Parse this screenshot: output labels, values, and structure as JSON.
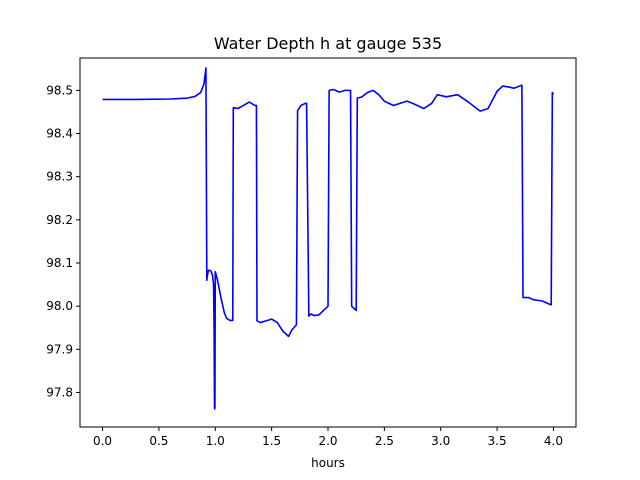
{
  "chart_data": {
    "type": "line",
    "title": "Water Depth h at gauge 535",
    "xlabel": "hours",
    "ylabel": "",
    "xlim": [
      -0.2,
      4.2
    ],
    "ylim": [
      97.72,
      98.575
    ],
    "x_ticks": [
      0.0,
      0.5,
      1.0,
      1.5,
      2.0,
      2.5,
      3.0,
      3.5,
      4.0
    ],
    "x_tick_labels": [
      "0.0",
      "0.5",
      "1.0",
      "1.5",
      "2.0",
      "2.5",
      "3.0",
      "3.5",
      "4.0"
    ],
    "y_ticks": [
      97.8,
      97.9,
      98.0,
      98.1,
      98.2,
      98.3,
      98.4,
      98.5
    ],
    "y_tick_labels": [
      "97.8",
      "97.9",
      "98.0",
      "98.1",
      "98.2",
      "98.3",
      "98.4",
      "98.5"
    ],
    "grid": false,
    "series": [
      {
        "color": "#0000ff",
        "x": [
          0.0,
          0.3,
          0.6,
          0.75,
          0.82,
          0.87,
          0.9,
          0.917,
          0.925,
          0.93,
          0.94,
          0.96,
          0.975,
          0.985,
          0.99,
          0.993,
          0.995,
          0.997,
          1.0,
          1.02,
          1.05,
          1.08,
          1.1,
          1.13,
          1.155,
          1.16,
          1.2,
          1.25,
          1.3,
          1.32,
          1.35,
          1.365,
          1.37,
          1.4,
          1.45,
          1.5,
          1.55,
          1.6,
          1.65,
          1.68,
          1.72,
          1.73,
          1.76,
          1.8,
          1.81,
          1.83,
          1.85,
          1.88,
          1.92,
          1.96,
          2.0,
          2.01,
          2.05,
          2.1,
          2.15,
          2.2,
          2.21,
          2.25,
          2.26,
          2.3,
          2.35,
          2.4,
          2.45,
          2.5,
          2.58,
          2.7,
          2.75,
          2.85,
          2.92,
          2.97,
          3.05,
          3.15,
          3.25,
          3.35,
          3.42,
          3.5,
          3.55,
          3.6,
          3.65,
          3.72,
          3.73,
          3.78,
          3.82,
          3.9,
          3.96,
          3.98,
          3.99,
          4.0
        ],
        "y": [
          98.479,
          98.479,
          98.48,
          98.482,
          98.486,
          98.495,
          98.515,
          98.552,
          98.06,
          98.072,
          98.083,
          98.082,
          98.072,
          98.05,
          97.93,
          97.768,
          97.762,
          97.765,
          98.08,
          98.06,
          98.02,
          97.985,
          97.972,
          97.967,
          97.967,
          98.46,
          98.458,
          98.465,
          98.473,
          98.47,
          98.465,
          98.465,
          97.966,
          97.962,
          97.966,
          97.97,
          97.962,
          97.942,
          97.93,
          97.945,
          97.957,
          98.453,
          98.465,
          98.47,
          98.47,
          97.977,
          97.982,
          97.978,
          97.98,
          97.99,
          98.0,
          98.5,
          98.502,
          98.496,
          98.5,
          98.5,
          98.0,
          97.99,
          98.482,
          98.485,
          98.495,
          98.5,
          98.49,
          98.475,
          98.465,
          98.475,
          98.47,
          98.458,
          98.47,
          98.49,
          98.485,
          98.49,
          98.472,
          98.452,
          98.458,
          98.498,
          98.51,
          98.508,
          98.505,
          98.512,
          98.02,
          98.02,
          98.015,
          98.012,
          98.005,
          98.003,
          98.495,
          98.49
        ]
      }
    ]
  }
}
